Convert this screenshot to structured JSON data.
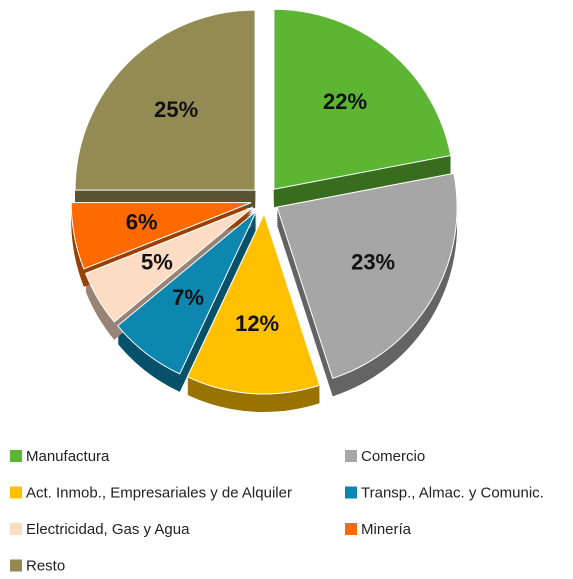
{
  "chart_data": {
    "type": "pie",
    "categories": [
      "Manufactura",
      "Comercio",
      "Act. Inmob., Empresariales y de Alquiler",
      "Transp., Almac. y Comunic.",
      "Electricidad, Gas y Agua",
      "Minería",
      "Resto"
    ],
    "values": [
      22,
      23,
      12,
      7,
      5,
      6,
      25
    ],
    "value_labels": [
      "22%",
      "23%",
      "12%",
      "7%",
      "5%",
      "6%",
      "25%"
    ],
    "colors": [
      "#5db534",
      "#a6a6a6",
      "#ffc000",
      "#0e87b0",
      "#fddcc4",
      "#ff6a00",
      "#948a54"
    ],
    "legend": "bottom"
  }
}
